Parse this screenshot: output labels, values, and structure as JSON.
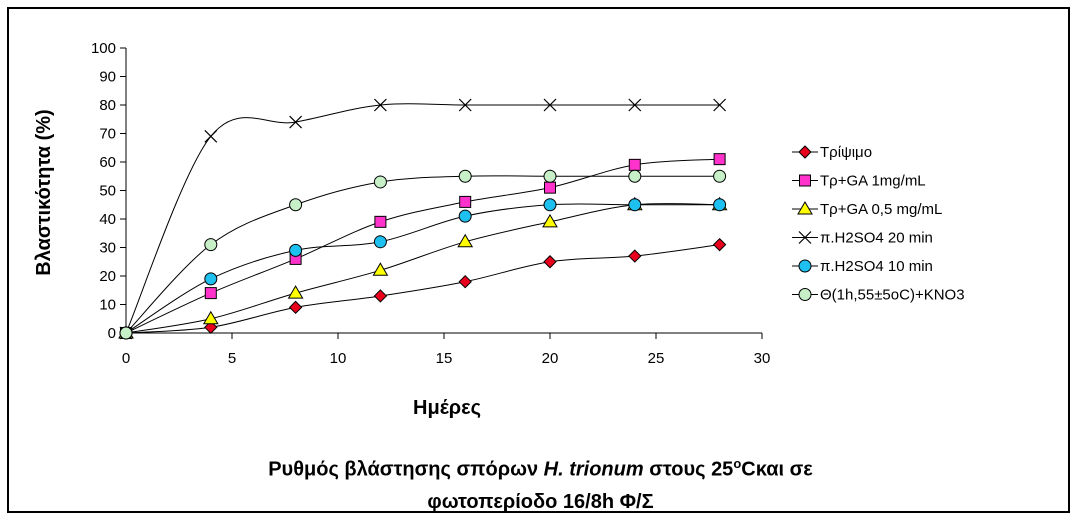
{
  "chart_data": {
    "type": "line",
    "title": "",
    "xlabel": "Ημέρες",
    "ylabel": "Βλαστικότητα (%)",
    "xlim": [
      0,
      30
    ],
    "ylim": [
      0,
      100
    ],
    "xticks": [
      0,
      5,
      10,
      15,
      20,
      25,
      30
    ],
    "yticks": [
      0,
      10,
      20,
      30,
      40,
      50,
      60,
      70,
      80,
      90,
      100
    ],
    "legend_position": "right",
    "grid": false,
    "x": [
      0,
      4,
      8,
      12,
      16,
      20,
      24,
      28
    ],
    "series": [
      {
        "name": "Τρίψιμο",
        "marker": "diamond",
        "color": "#e8001c",
        "values": [
          0,
          2,
          9,
          13,
          18,
          25,
          27,
          31
        ]
      },
      {
        "name": "Τρ+GA 1mg/mL",
        "marker": "square",
        "color": "#ff33cc",
        "values": [
          0,
          14,
          26,
          39,
          46,
          51,
          59,
          61
        ]
      },
      {
        "name": "Τρ+GA 0,5 mg/mL",
        "marker": "triangle",
        "color": "#ffff00",
        "values": [
          0,
          5,
          14,
          22,
          32,
          39,
          45,
          45
        ]
      },
      {
        "name": "π.H2SO4  20 min",
        "marker": "x",
        "color": "#000000",
        "values": [
          0,
          69,
          74,
          80,
          80,
          80,
          80,
          80
        ]
      },
      {
        "name": "π.H2SO4  10 min",
        "marker": "circle",
        "color": "#1ec0f0",
        "values": [
          0,
          19,
          29,
          32,
          41,
          45,
          45,
          45
        ]
      },
      {
        "name": "Θ(1h,55±5oC)+KNO3",
        "marker": "circle",
        "color": "#c8f0c8",
        "values": [
          0,
          31,
          45,
          53,
          55,
          55,
          55,
          55
        ]
      }
    ]
  },
  "caption": {
    "line1_a": "Ρυθμός βλάστησης σπόρων ",
    "line1_italic": "H. trionum",
    "line1_b": " στους 25",
    "line1_sup": "o",
    "line1_c": "Cκαι σε",
    "line2": "φωτοπερίοδο 16/8h Φ/Σ"
  }
}
